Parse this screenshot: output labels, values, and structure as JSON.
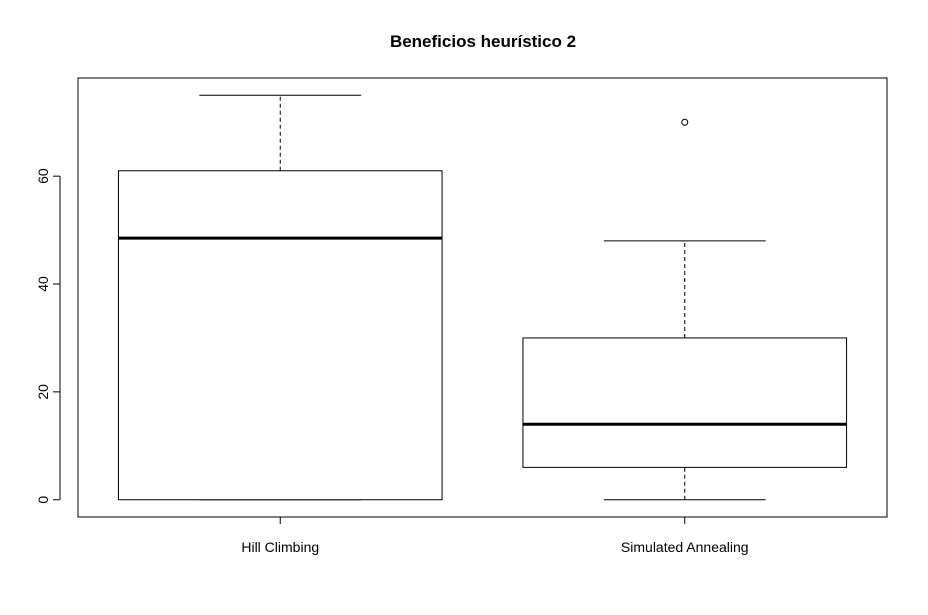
{
  "chart_data": {
    "type": "boxplot",
    "title": "Beneficios heurístico 2",
    "xlabel": "",
    "ylabel": "",
    "categories": [
      "Hill Climbing",
      "Simulated Annealing"
    ],
    "boxes": [
      {
        "category": "Hill Climbing",
        "whisker_low": 0,
        "q1": 0,
        "median": 48.5,
        "q3": 61,
        "whisker_high": 75,
        "outliers": []
      },
      {
        "category": "Simulated Annealing",
        "whisker_low": 0,
        "q1": 6,
        "median": 14,
        "q3": 30,
        "whisker_high": 48,
        "outliers": [
          70
        ]
      }
    ],
    "yticks": [
      0,
      20,
      40,
      60
    ],
    "ylim": [
      -3.2,
      78.2
    ],
    "grid": false,
    "legend": "none"
  }
}
